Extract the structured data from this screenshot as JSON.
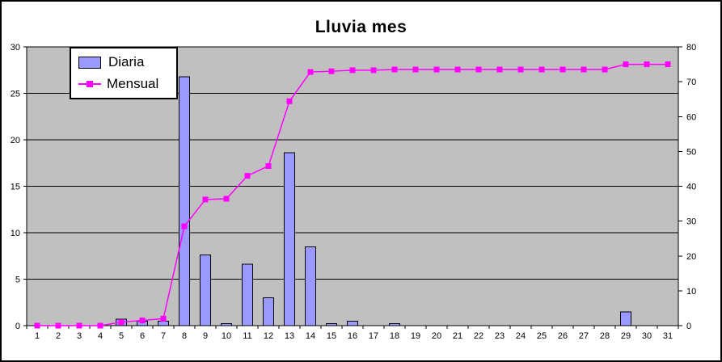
{
  "chart_data": {
    "type": "combo",
    "title": "Lluvia mes",
    "categories": [
      1,
      2,
      3,
      4,
      5,
      6,
      7,
      8,
      9,
      10,
      11,
      12,
      13,
      14,
      15,
      16,
      17,
      18,
      19,
      20,
      21,
      22,
      23,
      24,
      25,
      26,
      27,
      28,
      29,
      30,
      31
    ],
    "series": [
      {
        "name": "Diaria",
        "type": "bar",
        "axis": "left",
        "color": "#9999FF",
        "border_color": "#000000",
        "values": [
          0,
          0,
          0,
          0,
          0.7,
          0.5,
          0.5,
          26.8,
          7.6,
          0.2,
          6.6,
          3,
          18.6,
          8.5,
          0.2,
          0.5,
          0,
          0.2,
          0,
          0,
          0,
          0,
          0,
          0,
          0,
          0,
          0,
          0,
          1.5,
          0,
          0
        ]
      },
      {
        "name": "Mensual",
        "type": "line",
        "axis": "right",
        "color": "#FF00FF",
        "marker": "square",
        "values": [
          0,
          0,
          0,
          0,
          1,
          1.5,
          2,
          28.5,
          36.2,
          36.4,
          43,
          45.8,
          64.4,
          72.8,
          73,
          73.3,
          73.3,
          73.5,
          73.5,
          73.5,
          73.5,
          73.5,
          73.5,
          73.5,
          73.5,
          73.5,
          73.5,
          73.5,
          75,
          75,
          75
        ]
      }
    ],
    "left_axis": {
      "min": 0,
      "max": 30,
      "ticks": [
        0,
        5,
        10,
        15,
        20,
        25,
        30
      ]
    },
    "right_axis": {
      "min": 0,
      "max": 80,
      "ticks": [
        0,
        10,
        20,
        30,
        40,
        50,
        60,
        70,
        80
      ]
    },
    "xlabel": "",
    "ylabel": "",
    "grid": true,
    "legend_position": "top-left-inside",
    "plot_bg": "#C0C0C0",
    "grid_color": "#000000",
    "chart_bg": "#FFFFFF"
  }
}
